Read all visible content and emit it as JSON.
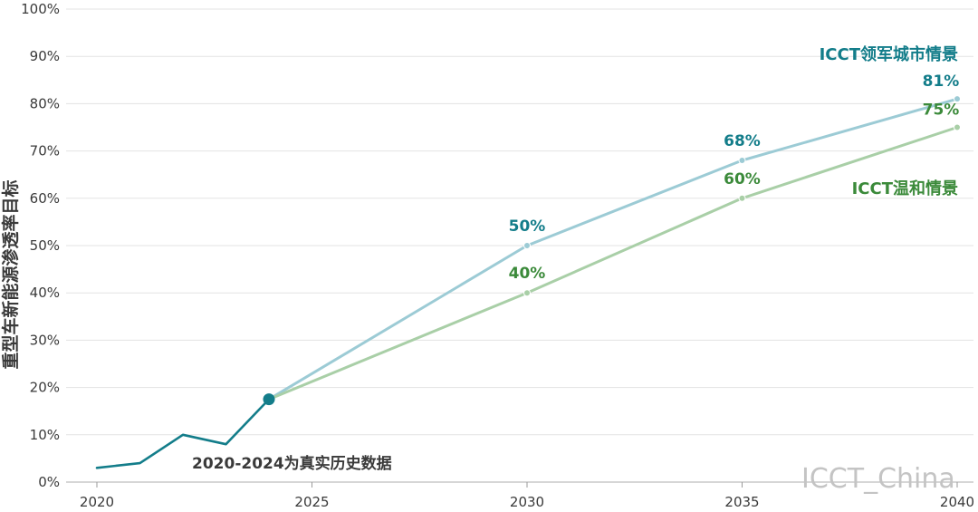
{
  "chart_data": {
    "type": "line",
    "ylabel": "重型车新能源渗透率目标",
    "xticks": [
      "2020",
      "2025",
      "2030",
      "2035",
      "2040"
    ],
    "yticks": [
      "0%",
      "10%",
      "20%",
      "30%",
      "40%",
      "50%",
      "60%",
      "70%",
      "80%",
      "90%",
      "100%"
    ],
    "xlim": [
      2020,
      2040
    ],
    "ylim": [
      0,
      100
    ],
    "grid": true,
    "historical": {
      "color": "#137d8a",
      "points": [
        [
          2020,
          3
        ],
        [
          2021,
          4
        ],
        [
          2022,
          10
        ],
        [
          2023,
          8
        ],
        [
          2024,
          17.5
        ]
      ],
      "note": "2020-2024为真实历史数据"
    },
    "series": [
      {
        "name": "ICCT领军城市情景",
        "line_color": "#9ccbd5",
        "label_color": "#137d8a",
        "points": [
          [
            2024,
            17.5
          ],
          [
            2030,
            50
          ],
          [
            2035,
            68
          ],
          [
            2040,
            81
          ]
        ],
        "labels": [
          null,
          "50%",
          "68%",
          "81%"
        ]
      },
      {
        "name": "ICCT温和情景",
        "line_color": "#a9cfa7",
        "label_color": "#3b8a3a",
        "points": [
          [
            2024,
            17.5
          ],
          [
            2030,
            40
          ],
          [
            2035,
            60
          ],
          [
            2040,
            75
          ]
        ],
        "labels": [
          null,
          "40%",
          "60%",
          "75%"
        ]
      }
    ]
  },
  "watermark": "ICCT_China"
}
